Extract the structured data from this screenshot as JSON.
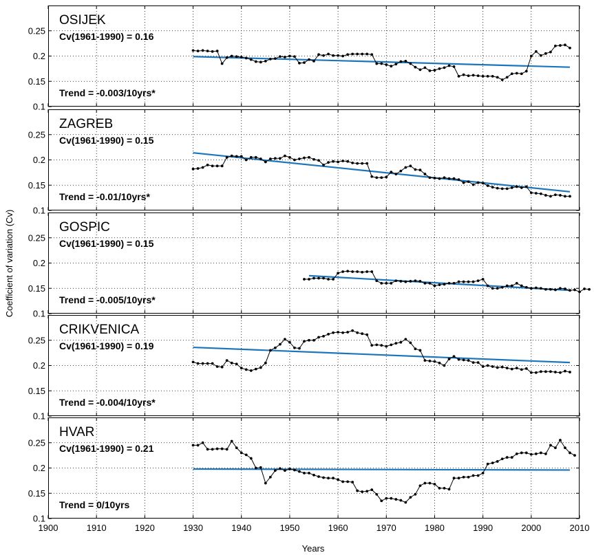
{
  "chart_data": {
    "type": "line",
    "xlabel": "Years",
    "ylabel": "Coefficient of variation (Cv)",
    "xlim": [
      1900,
      2010
    ],
    "ylim": [
      0.1,
      0.3
    ],
    "xticks": [
      1900,
      1910,
      1920,
      1930,
      1940,
      1950,
      1960,
      1970,
      1980,
      1990,
      2000,
      2010
    ],
    "yticks": [
      0.1,
      0.15,
      0.2,
      0.25
    ],
    "ytick_labels": [
      "0.1",
      "0.15",
      "0.2",
      "0.25"
    ],
    "grid": "dotted",
    "colors": {
      "data": "#000000",
      "trend": "#1a75bc"
    },
    "panels": [
      {
        "station": "OSIJEK",
        "cv_text": "Cv(1961-1990) = 0.16",
        "trend_text": "Trend = -0.003/10yrs*",
        "start_year": 1930,
        "values": [
          0.211,
          0.21,
          0.211,
          0.21,
          0.209,
          0.21,
          0.185,
          0.197,
          0.2,
          0.199,
          0.198,
          0.196,
          0.193,
          0.189,
          0.188,
          0.19,
          0.194,
          0.195,
          0.199,
          0.198,
          0.2,
          0.199,
          0.186,
          0.187,
          0.193,
          0.19,
          0.203,
          0.201,
          0.204,
          0.201,
          0.201,
          0.2,
          0.203,
          0.204,
          0.204,
          0.204,
          0.204,
          0.203,
          0.185,
          0.185,
          0.183,
          0.18,
          0.184,
          0.189,
          0.19,
          0.185,
          0.178,
          0.173,
          0.177,
          0.171,
          0.172,
          0.175,
          0.177,
          0.181,
          0.179,
          0.16,
          0.163,
          0.161,
          0.162,
          0.161,
          0.16,
          0.16,
          0.16,
          0.158,
          0.153,
          0.158,
          0.165,
          0.166,
          0.165,
          0.17,
          0.2,
          0.209,
          0.201,
          0.205,
          0.208,
          0.22,
          0.221,
          0.222,
          0.216
        ],
        "trend": {
          "x": [
            1930,
            2008
          ],
          "y": [
            0.199,
            0.178
          ]
        }
      },
      {
        "station": "ZAGREB",
        "cv_text": "Cv(1961-1990) = 0.15",
        "trend_text": "Trend = -0.01/10yrs*",
        "start_year": 1930,
        "values": [
          0.182,
          0.183,
          0.185,
          0.19,
          0.188,
          0.188,
          0.188,
          0.205,
          0.208,
          0.207,
          0.207,
          0.2,
          0.205,
          0.205,
          0.202,
          0.196,
          0.202,
          0.203,
          0.203,
          0.208,
          0.205,
          0.2,
          0.202,
          0.204,
          0.205,
          0.201,
          0.199,
          0.19,
          0.195,
          0.197,
          0.196,
          0.198,
          0.197,
          0.194,
          0.193,
          0.193,
          0.193,
          0.167,
          0.165,
          0.165,
          0.166,
          0.176,
          0.172,
          0.178,
          0.185,
          0.188,
          0.181,
          0.18,
          0.172,
          0.165,
          0.164,
          0.163,
          0.165,
          0.163,
          0.163,
          0.161,
          0.155,
          0.157,
          0.151,
          0.155,
          0.154,
          0.149,
          0.146,
          0.144,
          0.143,
          0.143,
          0.145,
          0.147,
          0.145,
          0.147,
          0.135,
          0.134,
          0.133,
          0.13,
          0.128,
          0.131,
          0.13,
          0.128,
          0.128
        ],
        "trend": {
          "x": [
            1930,
            2008
          ],
          "y": [
            0.214,
            0.137
          ]
        }
      },
      {
        "station": "GOSPIC",
        "cv_text": "Cv(1961-1990) = 0.15",
        "trend_text": "Trend = -0.005/10yrs*",
        "start_year": 1953,
        "values": [
          0.168,
          0.168,
          0.17,
          0.17,
          0.17,
          0.168,
          0.168,
          0.18,
          0.183,
          0.184,
          0.183,
          0.183,
          0.182,
          0.183,
          0.183,
          0.165,
          0.16,
          0.16,
          0.16,
          0.165,
          0.164,
          0.163,
          0.164,
          0.165,
          0.164,
          0.16,
          0.16,
          0.155,
          0.157,
          0.158,
          0.16,
          0.16,
          0.163,
          0.163,
          0.163,
          0.163,
          0.165,
          0.168,
          0.155,
          0.15,
          0.15,
          0.152,
          0.155,
          0.155,
          0.16,
          0.155,
          0.152,
          0.15,
          0.151,
          0.15,
          0.148,
          0.148,
          0.147,
          0.15,
          0.149,
          0.146,
          0.147,
          0.143,
          0.149,
          0.148
        ],
        "trend": {
          "x": [
            1954,
            2008
          ],
          "y": [
            0.175,
            0.146
          ]
        }
      },
      {
        "station": "CRIKVENICA",
        "cv_text": "Cv(1961-1990) = 0.19",
        "trend_text": "Trend = -0.004/10yrs*",
        "start_year": 1930,
        "values": [
          0.207,
          0.204,
          0.204,
          0.204,
          0.204,
          0.198,
          0.197,
          0.21,
          0.205,
          0.203,
          0.195,
          0.192,
          0.19,
          0.193,
          0.196,
          0.205,
          0.23,
          0.235,
          0.242,
          0.252,
          0.246,
          0.235,
          0.234,
          0.248,
          0.25,
          0.25,
          0.256,
          0.258,
          0.262,
          0.265,
          0.266,
          0.265,
          0.266,
          0.269,
          0.265,
          0.263,
          0.261,
          0.24,
          0.241,
          0.24,
          0.238,
          0.241,
          0.244,
          0.246,
          0.252,
          0.245,
          0.233,
          0.23,
          0.21,
          0.209,
          0.208,
          0.205,
          0.2,
          0.213,
          0.218,
          0.212,
          0.211,
          0.21,
          0.206,
          0.206,
          0.198,
          0.2,
          0.198,
          0.196,
          0.197,
          0.195,
          0.193,
          0.195,
          0.192,
          0.194,
          0.186,
          0.186,
          0.188,
          0.188,
          0.188,
          0.187,
          0.186,
          0.189,
          0.187
        ],
        "trend": {
          "x": [
            1930,
            2008
          ],
          "y": [
            0.236,
            0.206
          ]
        }
      },
      {
        "station": "HVAR",
        "cv_text": "Cv(1961-1990) = 0.21",
        "trend_text": "Trend = 0/10yrs",
        "start_year": 1930,
        "values": [
          0.245,
          0.245,
          0.25,
          0.237,
          0.237,
          0.238,
          0.238,
          0.237,
          0.253,
          0.24,
          0.23,
          0.226,
          0.219,
          0.2,
          0.201,
          0.17,
          0.182,
          0.195,
          0.199,
          0.195,
          0.198,
          0.196,
          0.193,
          0.19,
          0.19,
          0.186,
          0.183,
          0.181,
          0.18,
          0.18,
          0.177,
          0.173,
          0.173,
          0.172,
          0.155,
          0.153,
          0.154,
          0.157,
          0.148,
          0.135,
          0.14,
          0.14,
          0.138,
          0.136,
          0.132,
          0.142,
          0.148,
          0.165,
          0.17,
          0.17,
          0.168,
          0.16,
          0.16,
          0.158,
          0.18,
          0.18,
          0.182,
          0.182,
          0.185,
          0.185,
          0.19,
          0.208,
          0.21,
          0.213,
          0.218,
          0.221,
          0.221,
          0.228,
          0.23,
          0.23,
          0.227,
          0.228,
          0.23,
          0.228,
          0.245,
          0.24,
          0.255,
          0.24,
          0.23,
          0.225
        ],
        "trend": {
          "x": [
            1930,
            2008
          ],
          "y": [
            0.198,
            0.196
          ]
        }
      }
    ]
  }
}
